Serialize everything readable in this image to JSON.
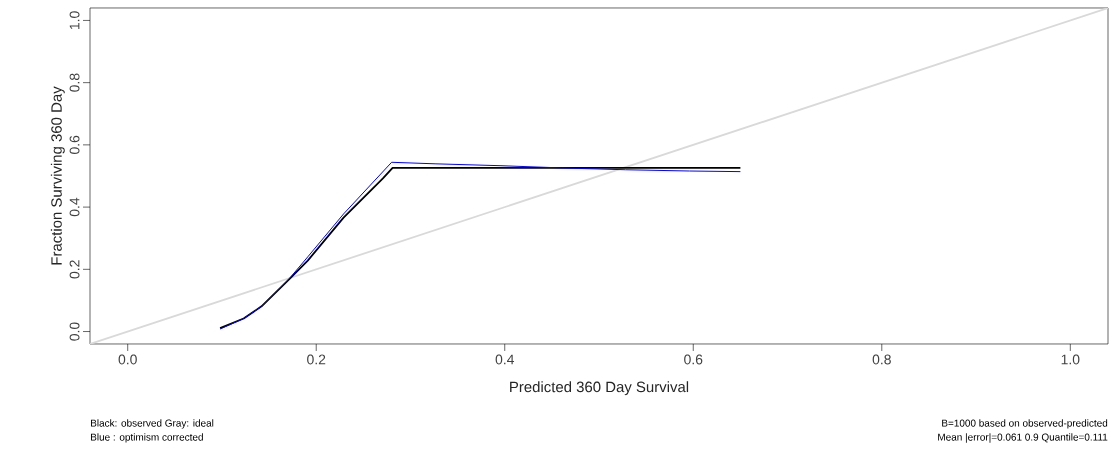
{
  "chart_data": {
    "type": "line",
    "xlabel": "Predicted  360 Day Survival",
    "ylabel": "Fraction Surviving 360 Day",
    "series": [
      {
        "color": "#d9d9d9",
        "x": [
          -0.04,
          1.04
        ],
        "values": [
          -0.04,
          1.04
        ]
      },
      {
        "color": "#000000",
        "x": [
          0.098,
          0.123,
          0.142,
          0.172,
          0.191,
          0.229,
          0.271,
          0.281,
          0.65
        ],
        "values": [
          0.011,
          0.042,
          0.081,
          0.17,
          0.228,
          0.366,
          0.493,
          0.526,
          0.526
        ]
      },
      {
        "color": "#0000ff",
        "x": [
          0.098,
          0.123,
          0.142,
          0.172,
          0.191,
          0.229,
          0.28,
          0.327,
          0.396,
          0.46,
          0.528,
          0.596,
          0.65
        ],
        "values": [
          0.008,
          0.042,
          0.081,
          0.172,
          0.24,
          0.378,
          0.544,
          0.539,
          0.533,
          0.526,
          0.52,
          0.516,
          0.514
        ]
      }
    ],
    "xlim": [
      -0.04,
      1.04
    ],
    "ylim": [
      -0.04,
      1.04
    ],
    "xticks": [
      {
        "value": 0,
        "label": "0.0"
      },
      {
        "value": 0.2,
        "label": "0.2"
      },
      {
        "value": 0.4,
        "label": "0.4"
      },
      {
        "value": 0.6,
        "label": "0.6"
      },
      {
        "value": 0.8,
        "label": "0.8"
      },
      {
        "value": 1,
        "label": "1.0"
      }
    ],
    "yticks": [
      {
        "value": 0,
        "label": "0.0"
      },
      {
        "value": 0.2,
        "label": "0.2"
      },
      {
        "value": 0.4,
        "label": "0.4"
      },
      {
        "value": 0.6,
        "label": "0.6"
      },
      {
        "value": 0.8,
        "label": "0.8"
      },
      {
        "value": 1,
        "label": "1.0"
      }
    ],
    "marker": "none",
    "line_style": "solid",
    "annotations": [
      "Black: observed  Gray: ideal",
      "Blue : optimism corrected",
      "B=1000 based on observed-predicted",
      "Mean |error|=0.061  0.9 Quantile=0.111"
    ]
  }
}
